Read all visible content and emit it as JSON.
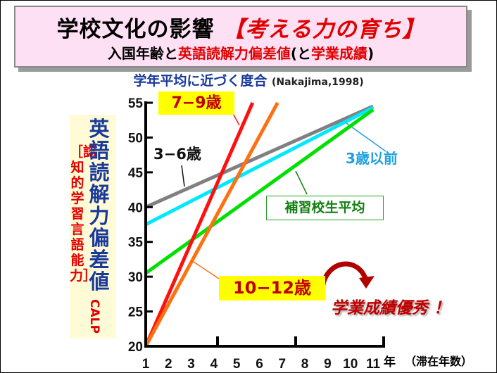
{
  "title": {
    "main": "学校文化の影響",
    "main_highlight": "【考える力の育ち】",
    "line2_a": "入国年齢と",
    "line2_b": "英語読解力偏差値",
    "line2_c": "(と",
    "line2_d": "学業成績",
    "line2_e": ")"
  },
  "subtitle": {
    "text": "学年平均に近づく度合",
    "citation": "(Nakajima,1998)"
  },
  "success_note": "学業成績優秀 ！",
  "chart_data": {
    "type": "line",
    "ylabel": "英語読解力偏差値",
    "ylabel_suffix": "CALP",
    "ylabel_note": "［認知的学習言語能力］",
    "xlabel": "（滞在年数）",
    "x_unit": "年",
    "xlim": [
      1,
      11
    ],
    "ylim": [
      20,
      55
    ],
    "x_ticks": [
      "1",
      "2",
      "3",
      "4",
      "5",
      "6",
      "7",
      "8",
      "9",
      "10",
      "11"
    ],
    "y_ticks": [
      20,
      25,
      30,
      35,
      40,
      45,
      50,
      55
    ],
    "grid": false,
    "series": [
      {
        "name": "3−6歳",
        "color": "#808080",
        "points": [
          [
            1,
            40
          ],
          [
            11,
            54.5
          ]
        ]
      },
      {
        "name": "3歳以前",
        "color": "#00e8ff",
        "points": [
          [
            1,
            37.5
          ],
          [
            11,
            54.3
          ]
        ]
      },
      {
        "name": "補習校生平均",
        "color": "#00e000",
        "points": [
          [
            1,
            30.5
          ],
          [
            11,
            54
          ]
        ]
      },
      {
        "name": "7−9歳",
        "color": "#ff1010",
        "points": [
          [
            1,
            20
          ],
          [
            5.7,
            55
          ]
        ]
      },
      {
        "name": "10−12歳",
        "color": "#ff7010",
        "points": [
          [
            1,
            20
          ],
          [
            6.8,
            55
          ]
        ]
      }
    ]
  }
}
